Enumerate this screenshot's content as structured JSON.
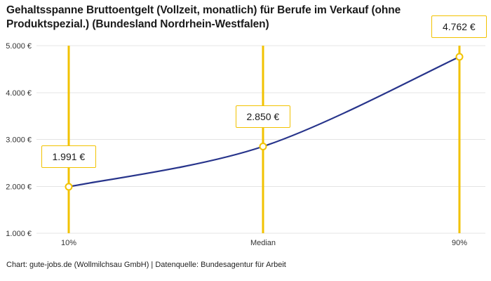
{
  "title": "Gehaltsspanne Bruttoentgelt (Vollzeit, monatlich) für Berufe im Verkauf (ohne Produktspezial.) (Bundesland Nordrhein-Westfalen)",
  "footer": "Chart: gute-jobs.de (Wollmilchsau GmbH) | Datenquelle: Bundesagentur für Arbeit",
  "colors": {
    "accent_yellow": "#f2c200",
    "line_blue": "#27348b",
    "grid": "#e4e4e4",
    "tick_text": "#333333",
    "marker_fill": "#fffef4"
  },
  "chart_data": {
    "type": "line",
    "title": "Gehaltsspanne Bruttoentgelt (Vollzeit, monatlich) für Berufe im Verkauf (ohne Produktspezial.) (Bundesland Nordrhein-Westfalen)",
    "x_tick_labels": [
      "10%",
      "Median",
      "90%"
    ],
    "y_ticks": [
      1000,
      2000,
      3000,
      4000,
      5000
    ],
    "y_tick_labels": [
      "1.000 €",
      "2.000 €",
      "3.000 €",
      "4.000 €",
      "5.000 €"
    ],
    "ylim": [
      1000,
      5000
    ],
    "grid": true,
    "legend": false,
    "points": [
      {
        "x_label": "10%",
        "value": 1991,
        "label": "1.991 €"
      },
      {
        "x_label": "Median",
        "value": 2850,
        "label": "2.850 €"
      },
      {
        "x_label": "90%",
        "value": 4762,
        "label": "4.762 €"
      }
    ]
  }
}
